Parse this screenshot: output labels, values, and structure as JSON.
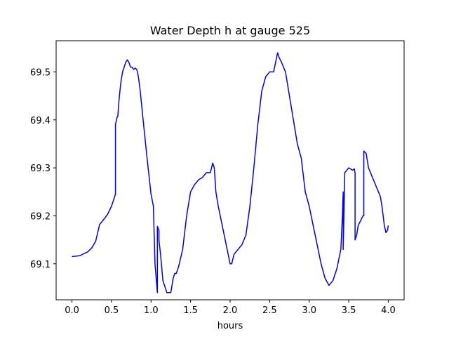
{
  "chart_data": {
    "type": "line",
    "title": "Water Depth h at gauge 525",
    "xlabel": "hours",
    "ylabel": "",
    "xlim": [
      -0.2,
      4.2
    ],
    "ylim": [
      69.025,
      69.565
    ],
    "xticks": [
      0.0,
      0.5,
      1.0,
      1.5,
      2.0,
      2.5,
      3.0,
      3.5,
      4.0
    ],
    "xtick_labels": [
      "0.0",
      "0.5",
      "1.0",
      "1.5",
      "2.0",
      "2.5",
      "3.0",
      "3.5",
      "4.0"
    ],
    "yticks": [
      69.1,
      69.2,
      69.3,
      69.4,
      69.5
    ],
    "ytick_labels": [
      "69.1",
      "69.2",
      "69.3",
      "69.4",
      "69.5"
    ],
    "grid": false,
    "series": [
      {
        "color": "#0000ff",
        "x": [
          0.0,
          0.1,
          0.2,
          0.25,
          0.3,
          0.35,
          0.4,
          0.45,
          0.5,
          0.55,
          0.55,
          0.57,
          0.58,
          0.59,
          0.6,
          0.62,
          0.64,
          0.66,
          0.68,
          0.7,
          0.72,
          0.74,
          0.76,
          0.78,
          0.8,
          0.82,
          0.84,
          0.86,
          0.9,
          0.95,
          1.0,
          1.03,
          1.05,
          1.07,
          1.08,
          1.08,
          1.1,
          1.1,
          1.12,
          1.15,
          1.2,
          1.25,
          1.28,
          1.3,
          1.32,
          1.35,
          1.4,
          1.45,
          1.5,
          1.55,
          1.6,
          1.65,
          1.7,
          1.72,
          1.75,
          1.78,
          1.8,
          1.82,
          1.85,
          1.9,
          1.95,
          2.0,
          2.02,
          2.05,
          2.1,
          2.15,
          2.2,
          2.25,
          2.3,
          2.35,
          2.4,
          2.45,
          2.5,
          2.55,
          2.6,
          2.62,
          2.65,
          2.7,
          2.75,
          2.8,
          2.85,
          2.9,
          2.95,
          3.0,
          3.05,
          3.1,
          3.15,
          3.2,
          3.25,
          3.3,
          3.35,
          3.4,
          3.42,
          3.43,
          3.43,
          3.45,
          3.5,
          3.55,
          3.57,
          3.58,
          3.58,
          3.6,
          3.62,
          3.65,
          3.68,
          3.69,
          3.69,
          3.72,
          3.75,
          3.8,
          3.85,
          3.9,
          3.92,
          3.95,
          3.97,
          3.99,
          4.0
        ],
        "y": [
          69.115,
          69.117,
          69.125,
          69.133,
          69.147,
          69.182,
          69.192,
          69.203,
          69.22,
          69.245,
          69.39,
          69.405,
          69.408,
          69.43,
          69.45,
          69.48,
          69.5,
          69.51,
          69.52,
          69.525,
          69.52,
          69.51,
          69.51,
          69.505,
          69.508,
          69.505,
          69.49,
          69.465,
          69.4,
          69.32,
          69.245,
          69.22,
          69.1,
          69.06,
          69.04,
          69.178,
          69.17,
          69.15,
          69.12,
          69.065,
          69.04,
          69.04,
          69.07,
          69.08,
          69.08,
          69.095,
          69.13,
          69.2,
          69.25,
          69.265,
          69.275,
          69.28,
          69.29,
          69.29,
          69.29,
          69.31,
          69.3,
          69.25,
          69.22,
          69.18,
          69.14,
          69.1,
          69.1,
          69.12,
          69.13,
          69.14,
          69.16,
          69.22,
          69.3,
          69.39,
          69.46,
          69.49,
          69.5,
          69.5,
          69.54,
          69.53,
          69.52,
          69.5,
          69.45,
          69.4,
          69.35,
          69.32,
          69.25,
          69.22,
          69.18,
          69.14,
          69.1,
          69.07,
          69.055,
          69.065,
          69.09,
          69.13,
          69.2,
          69.25,
          69.13,
          69.29,
          69.3,
          69.295,
          69.298,
          69.29,
          69.15,
          69.16,
          69.18,
          69.19,
          69.2,
          69.2,
          69.335,
          69.33,
          69.3,
          69.28,
          69.26,
          69.24,
          69.22,
          69.18,
          69.165,
          69.17,
          69.18
        ]
      }
    ]
  }
}
